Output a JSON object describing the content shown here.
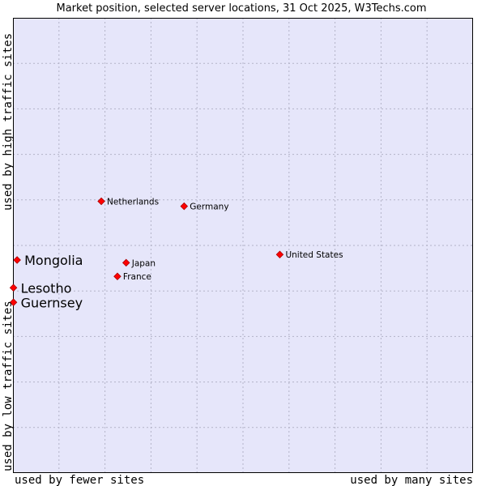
{
  "colors": {
    "background": "#ffffff",
    "plot_background": "#e6e6fa",
    "grid": "#b3b3c8",
    "border": "#000000",
    "marker": "#ff0000",
    "marker_edge": "#aa0000"
  },
  "chart_data": {
    "type": "scatter",
    "title": "Market position, selected server locations, 31 Oct 2025, W3Techs.com",
    "xlabel_left": "used by fewer sites",
    "xlabel_right": "used by many sites",
    "ylabel_top": "used by high traffic sites",
    "ylabel_bottom": "used by low traffic sites",
    "xlim": [
      0,
      10
    ],
    "ylim": [
      0,
      10
    ],
    "grid": true,
    "points": [
      {
        "label": "Netherlands",
        "x": 1.92,
        "y": 5.97,
        "emphasis": false
      },
      {
        "label": "Germany",
        "x": 3.72,
        "y": 5.86,
        "emphasis": false
      },
      {
        "label": "Japan",
        "x": 2.46,
        "y": 4.62,
        "emphasis": false
      },
      {
        "label": "France",
        "x": 2.27,
        "y": 4.32,
        "emphasis": false
      },
      {
        "label": "United States",
        "x": 5.8,
        "y": 4.8,
        "emphasis": false
      },
      {
        "label": "Mongolia",
        "x": 0.09,
        "y": 4.68,
        "emphasis": true
      },
      {
        "label": "Lesotho",
        "x": 0.01,
        "y": 4.07,
        "emphasis": true
      },
      {
        "label": "Guernsey",
        "x": 0.01,
        "y": 3.75,
        "emphasis": true
      }
    ]
  }
}
